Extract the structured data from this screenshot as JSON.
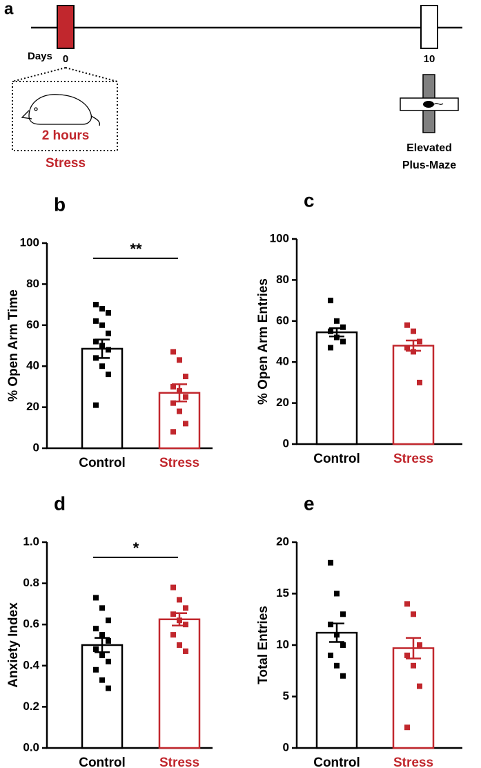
{
  "panel_a": {
    "panel": "a",
    "days_label": "Days",
    "days": [
      0,
      10
    ],
    "duration": "2 hours",
    "condition": "Stress",
    "test": [
      "Elevated",
      "Plus-Maze"
    ]
  },
  "chart_data": [
    {
      "type": "bar",
      "panel": "b",
      "ylabel": "% Open Arm Time",
      "categories": [
        "Control",
        "Stress"
      ],
      "colors": [
        "#000000",
        "#c1272d"
      ],
      "values": [
        48.5,
        27
      ],
      "errors": [
        4.5,
        4.2
      ],
      "points": [
        [
          70,
          68,
          66,
          62,
          60,
          56,
          52,
          50,
          48,
          44,
          40,
          36,
          21
        ],
        [
          47,
          43,
          35,
          30,
          28,
          25,
          22,
          18,
          12,
          8
        ]
      ],
      "ylim": [
        0,
        100
      ],
      "yticks": [
        0,
        20,
        40,
        60,
        80,
        100
      ],
      "significance": "**"
    },
    {
      "type": "bar",
      "panel": "c",
      "ylabel": "% Open Arm Entries",
      "categories": [
        "Control",
        "Stress"
      ],
      "colors": [
        "#000000",
        "#c1272d"
      ],
      "values": [
        54.5,
        48
      ],
      "errors": [
        2,
        2.5
      ],
      "points": [
        [
          70,
          60,
          57,
          55,
          52,
          50,
          47
        ],
        [
          58,
          55,
          50,
          47,
          45,
          30
        ]
      ],
      "ylim": [
        0,
        100
      ],
      "yticks": [
        0,
        20,
        40,
        60,
        80,
        100
      ]
    },
    {
      "type": "bar",
      "panel": "d",
      "ylabel": "Anxiety Index",
      "categories": [
        "Control",
        "Stress"
      ],
      "colors": [
        "#000000",
        "#c1272d"
      ],
      "values": [
        0.5,
        0.625
      ],
      "errors": [
        0.035,
        0.03
      ],
      "points": [
        [
          0.73,
          0.68,
          0.62,
          0.58,
          0.55,
          0.52,
          0.48,
          0.45,
          0.42,
          0.38,
          0.33,
          0.29
        ],
        [
          0.78,
          0.72,
          0.68,
          0.65,
          0.62,
          0.6,
          0.55,
          0.5,
          0.47
        ]
      ],
      "ylim": [
        0,
        1
      ],
      "yticks": [
        {
          "value": 0,
          "label": "0.0"
        },
        0.2,
        0.4,
        0.6,
        0.8,
        {
          "value": 1,
          "label": "1.0"
        }
      ],
      "significance": "*"
    },
    {
      "type": "bar",
      "panel": "e",
      "ylabel": "Total Entries",
      "categories": [
        "Control",
        "Stress"
      ],
      "colors": [
        "#000000",
        "#c1272d"
      ],
      "values": [
        11.2,
        9.7
      ],
      "errors": [
        0.9,
        1
      ],
      "points": [
        [
          18,
          15,
          13,
          12,
          11,
          10,
          9,
          8,
          7
        ],
        [
          14,
          13,
          10,
          9,
          8,
          6,
          2
        ]
      ],
      "ylim": [
        0,
        20
      ],
      "yticks": [
        0,
        5,
        10,
        15,
        20
      ]
    }
  ]
}
